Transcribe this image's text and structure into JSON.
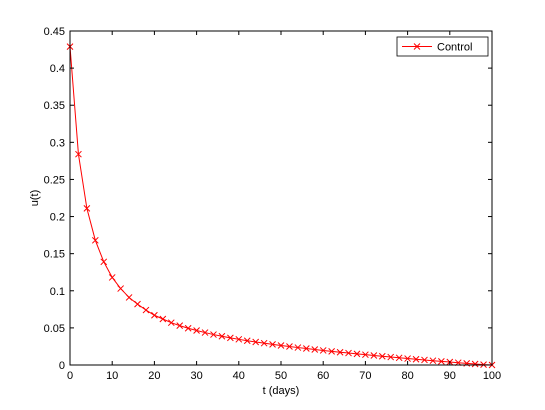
{
  "chart_data": {
    "type": "line",
    "title": "",
    "xlabel": "t (days)",
    "ylabel": "u(t)",
    "xlim": [
      0,
      100
    ],
    "ylim": [
      0,
      0.45
    ],
    "xticks": [
      0,
      10,
      20,
      30,
      40,
      50,
      60,
      70,
      80,
      90,
      100
    ],
    "xtick_labels": [
      "0",
      "10",
      "20",
      "30",
      "40",
      "50",
      "60",
      "70",
      "80",
      "90",
      "100"
    ],
    "yticks": [
      0,
      0.05,
      0.1,
      0.15,
      0.2,
      0.25,
      0.3,
      0.35,
      0.4,
      0.45
    ],
    "ytick_labels": [
      "0",
      "0.05",
      "0.1",
      "0.15",
      "0.2",
      "0.25",
      "0.3",
      "0.35",
      "0.4",
      "0.45"
    ],
    "grid": false,
    "legend_position": "top-right",
    "series": [
      {
        "name": "Control",
        "color": "#ff0000",
        "marker": "x",
        "x": [
          0,
          2,
          4,
          6,
          8,
          10,
          12,
          14,
          16,
          18,
          20,
          22,
          24,
          26,
          28,
          30,
          32,
          34,
          36,
          38,
          40,
          42,
          44,
          46,
          48,
          50,
          52,
          54,
          56,
          58,
          60,
          62,
          64,
          66,
          68,
          70,
          72,
          74,
          76,
          78,
          80,
          82,
          84,
          86,
          88,
          90,
          92,
          94,
          96,
          98,
          100
        ],
        "y": [
          0.429,
          0.284,
          0.211,
          0.168,
          0.139,
          0.118,
          0.103,
          0.091,
          0.082,
          0.074,
          0.067,
          0.062,
          0.057,
          0.053,
          0.0495,
          0.0465,
          0.0437,
          0.041,
          0.0387,
          0.0366,
          0.0346,
          0.0327,
          0.031,
          0.0294,
          0.0278,
          0.0263,
          0.0249,
          0.0235,
          0.0222,
          0.0209,
          0.0196,
          0.0184,
          0.0172,
          0.0161,
          0.015,
          0.0139,
          0.0128,
          0.0118,
          0.0107,
          0.0097,
          0.0087,
          0.0077,
          0.0068,
          0.0058,
          0.0049,
          0.004,
          0.0031,
          0.0022,
          0.0013,
          0.0005,
          0.0
        ]
      }
    ]
  }
}
